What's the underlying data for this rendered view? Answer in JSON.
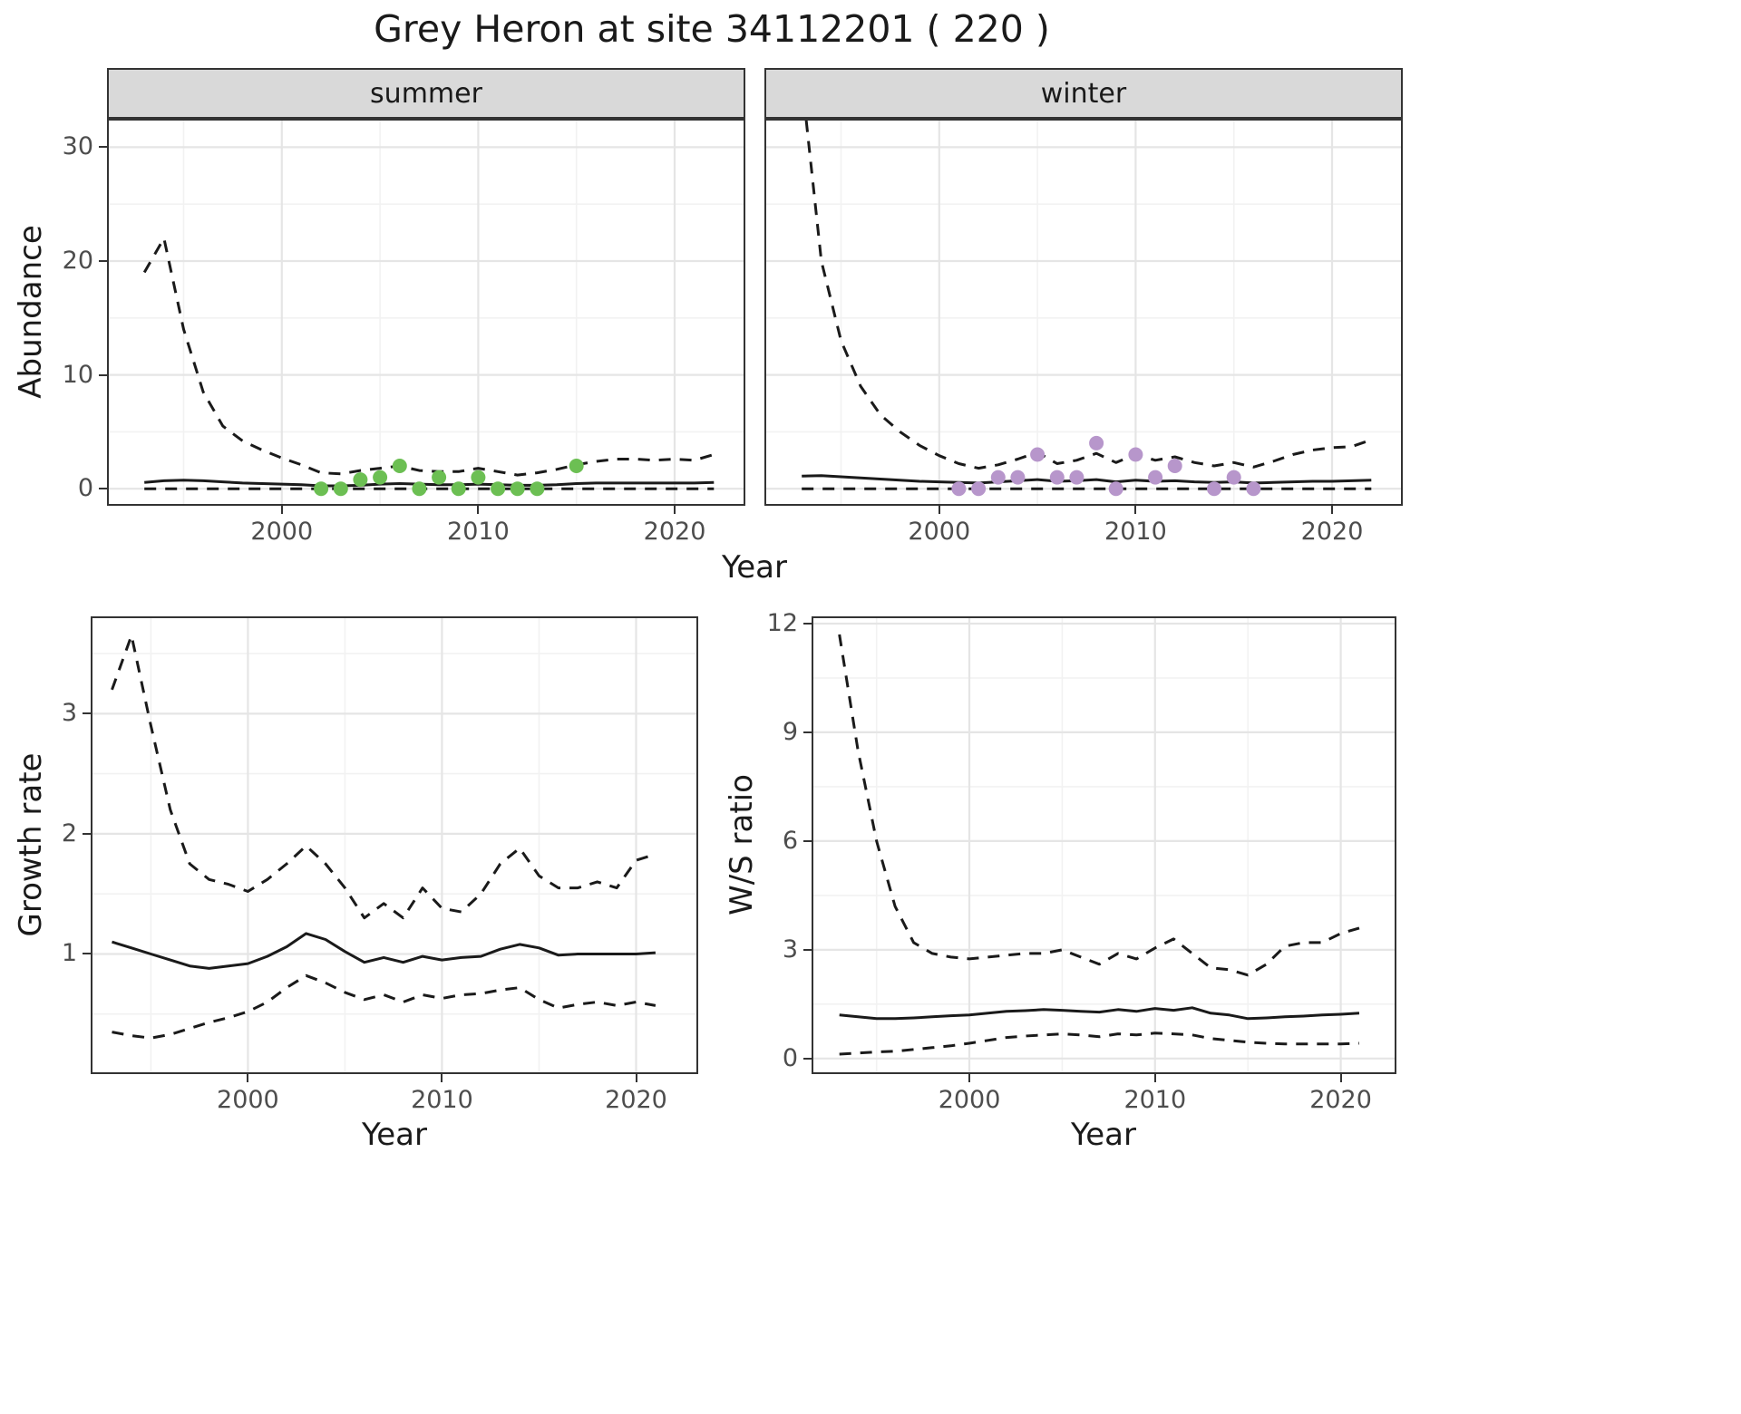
{
  "title": "Grey Heron at site 34112201 ( 220 )",
  "top_row": {
    "ylabel": "Abundance",
    "xlabel": "Year",
    "facets": [
      "summer",
      "winter"
    ]
  },
  "bottom_left": {
    "ylabel": "Growth rate",
    "xlabel": "Year"
  },
  "bottom_right": {
    "ylabel": "W/S ratio",
    "xlabel": "Year"
  },
  "colors": {
    "line": "#1a1a1a",
    "summer_points": "#6cbf53",
    "winter_points": "#b796cb"
  },
  "chart_data": [
    {
      "id": "abundance_summer",
      "type": "line",
      "strip": "summer",
      "xlabel": "Year",
      "ylabel": "Abundance",
      "xlim": [
        1991.1,
        2023.6
      ],
      "ylim": [
        -1.5,
        32.5
      ],
      "xticks": [
        2000,
        2010,
        2020
      ],
      "yticks": [
        0,
        10,
        20,
        30
      ],
      "x": [
        1993,
        1994,
        1995,
        1996,
        1997,
        1998,
        1999,
        2000,
        2001,
        2002,
        2003,
        2004,
        2005,
        2006,
        2007,
        2008,
        2009,
        2010,
        2011,
        2012,
        2013,
        2014,
        2015,
        2016,
        2017,
        2018,
        2019,
        2020,
        2021,
        2022
      ],
      "series": [
        {
          "name": "mean",
          "style": "solid",
          "y": [
            0.55,
            0.7,
            0.75,
            0.7,
            0.6,
            0.5,
            0.45,
            0.4,
            0.35,
            0.25,
            0.25,
            0.3,
            0.4,
            0.45,
            0.4,
            0.35,
            0.35,
            0.4,
            0.35,
            0.3,
            0.3,
            0.35,
            0.45,
            0.5,
            0.5,
            0.5,
            0.5,
            0.5,
            0.5,
            0.55
          ]
        },
        {
          "name": "upper_95ci",
          "style": "dashed",
          "y": [
            19,
            22,
            14,
            8.5,
            5.5,
            4.2,
            3.4,
            2.7,
            2.1,
            1.4,
            1.3,
            1.6,
            1.8,
            2.0,
            1.6,
            1.5,
            1.5,
            1.8,
            1.5,
            1.2,
            1.4,
            1.7,
            2.1,
            2.4,
            2.6,
            2.6,
            2.5,
            2.6,
            2.5,
            3.0
          ]
        },
        {
          "name": "lower_95ci",
          "style": "dashed",
          "y": [
            0,
            0,
            0,
            0,
            0,
            0,
            0,
            0,
            0,
            0,
            0,
            0,
            0,
            0,
            0,
            0,
            0,
            0,
            0,
            0,
            0,
            0,
            0,
            0,
            0,
            0,
            0,
            0,
            0,
            0
          ]
        }
      ],
      "points": {
        "name": "observed_counts",
        "color": "#6cbf53",
        "x": [
          2002,
          2003,
          2004,
          2005,
          2006,
          2007,
          2008,
          2009,
          2010,
          2011,
          2012,
          2013,
          2015
        ],
        "y": [
          0,
          0,
          0.8,
          1,
          2,
          0,
          1,
          0,
          1,
          0,
          0,
          0,
          2
        ]
      }
    },
    {
      "id": "abundance_winter",
      "type": "line",
      "strip": "winter",
      "xlabel": "Year",
      "ylabel": "Abundance",
      "xlim": [
        1991.1,
        2023.6
      ],
      "ylim": [
        -1.5,
        32.5
      ],
      "xticks": [
        2000,
        2010,
        2020
      ],
      "yticks": [
        0,
        10,
        20,
        30
      ],
      "x": [
        1993,
        1994,
        1995,
        1996,
        1997,
        1998,
        1999,
        2000,
        2001,
        2002,
        2003,
        2004,
        2005,
        2006,
        2007,
        2008,
        2009,
        2010,
        2011,
        2012,
        2013,
        2014,
        2015,
        2016,
        2017,
        2018,
        2019,
        2020,
        2021,
        2022
      ],
      "series": [
        {
          "name": "mean",
          "style": "solid",
          "y": [
            1.1,
            1.15,
            1.05,
            0.95,
            0.85,
            0.75,
            0.65,
            0.6,
            0.55,
            0.5,
            0.6,
            0.7,
            0.8,
            0.65,
            0.7,
            0.8,
            0.6,
            0.75,
            0.65,
            0.7,
            0.6,
            0.55,
            0.6,
            0.5,
            0.55,
            0.6,
            0.65,
            0.65,
            0.7,
            0.75
          ]
        },
        {
          "name": "upper_95ci",
          "style": "dashed",
          "y": [
            36,
            20,
            13,
            9,
            6.5,
            5,
            3.8,
            2.9,
            2.2,
            1.8,
            2.1,
            2.6,
            3.2,
            2.2,
            2.5,
            3.1,
            2.3,
            3.0,
            2.5,
            2.8,
            2.3,
            2.0,
            2.3,
            1.9,
            2.4,
            3.0,
            3.4,
            3.6,
            3.7,
            4.3
          ]
        },
        {
          "name": "lower_95ci",
          "style": "dashed",
          "y": [
            0,
            0,
            0,
            0,
            0,
            0,
            0,
            0,
            0,
            0,
            0,
            0,
            0,
            0,
            0,
            0,
            0,
            0,
            0,
            0,
            0,
            0,
            0,
            0,
            0,
            0,
            0,
            0,
            0,
            0
          ]
        }
      ],
      "points": {
        "name": "observed_counts",
        "color": "#b796cb",
        "x": [
          2001,
          2002,
          2003,
          2004,
          2005,
          2006,
          2007,
          2008,
          2009,
          2010,
          2011,
          2012,
          2014,
          2015,
          2016
        ],
        "y": [
          0,
          0,
          1,
          1,
          3,
          1,
          1,
          4,
          0,
          3,
          1,
          2,
          0,
          1,
          0
        ]
      }
    },
    {
      "id": "growth_rate",
      "type": "line",
      "xlabel": "Year",
      "ylabel": "Growth rate",
      "xlim": [
        1991.9,
        2023.2
      ],
      "ylim": [
        0.0,
        3.81
      ],
      "xticks": [
        2000,
        2010,
        2020
      ],
      "yticks": [
        1,
        2,
        3
      ],
      "x": [
        1993,
        1994,
        1995,
        1996,
        1997,
        1998,
        1999,
        2000,
        2001,
        2002,
        2003,
        2004,
        2005,
        2006,
        2007,
        2008,
        2009,
        2010,
        2011,
        2012,
        2013,
        2014,
        2015,
        2016,
        2017,
        2018,
        2019,
        2020,
        2021
      ],
      "series": [
        {
          "name": "mean",
          "style": "solid",
          "y": [
            1.1,
            1.05,
            1.0,
            0.95,
            0.9,
            0.88,
            0.9,
            0.92,
            0.98,
            1.06,
            1.17,
            1.12,
            1.02,
            0.93,
            0.97,
            0.93,
            0.98,
            0.95,
            0.97,
            0.98,
            1.04,
            1.08,
            1.05,
            0.99,
            1.0,
            1.0,
            1.0,
            1.0,
            1.01
          ]
        },
        {
          "name": "upper_95ci",
          "style": "dashed",
          "y": [
            3.2,
            3.65,
            2.9,
            2.2,
            1.75,
            1.62,
            1.58,
            1.52,
            1.62,
            1.75,
            1.9,
            1.75,
            1.55,
            1.3,
            1.42,
            1.3,
            1.55,
            1.38,
            1.35,
            1.5,
            1.75,
            1.88,
            1.65,
            1.55,
            1.55,
            1.6,
            1.55,
            1.78,
            1.83
          ]
        },
        {
          "name": "lower_95ci",
          "style": "dashed",
          "y": [
            0.35,
            0.32,
            0.3,
            0.33,
            0.38,
            0.43,
            0.47,
            0.52,
            0.6,
            0.72,
            0.82,
            0.76,
            0.68,
            0.62,
            0.66,
            0.6,
            0.66,
            0.63,
            0.66,
            0.67,
            0.7,
            0.72,
            0.62,
            0.55,
            0.58,
            0.6,
            0.57,
            0.6,
            0.57
          ]
        }
      ]
    },
    {
      "id": "ws_ratio",
      "type": "line",
      "xlabel": "Year",
      "ylabel": "W/S ratio",
      "xlim": [
        1991.5,
        2023.0
      ],
      "ylim": [
        -0.43,
        12.2
      ],
      "xticks": [
        2000,
        2010,
        2020
      ],
      "yticks": [
        0,
        3,
        6,
        9,
        12
      ],
      "x": [
        1993,
        1994,
        1995,
        1996,
        1997,
        1998,
        1999,
        2000,
        2001,
        2002,
        2003,
        2004,
        2005,
        2006,
        2007,
        2008,
        2009,
        2010,
        2011,
        2012,
        2013,
        2014,
        2015,
        2016,
        2017,
        2018,
        2019,
        2020,
        2021
      ],
      "series": [
        {
          "name": "mean",
          "style": "solid",
          "y": [
            1.2,
            1.15,
            1.1,
            1.1,
            1.12,
            1.15,
            1.18,
            1.2,
            1.25,
            1.3,
            1.32,
            1.35,
            1.33,
            1.3,
            1.28,
            1.35,
            1.3,
            1.38,
            1.33,
            1.4,
            1.25,
            1.2,
            1.1,
            1.12,
            1.15,
            1.17,
            1.2,
            1.22,
            1.25
          ]
        },
        {
          "name": "upper_95ci",
          "style": "dashed",
          "y": [
            11.7,
            8.5,
            6.0,
            4.2,
            3.2,
            2.9,
            2.8,
            2.75,
            2.8,
            2.85,
            2.9,
            2.9,
            3.0,
            2.8,
            2.6,
            2.9,
            2.75,
            3.05,
            3.3,
            2.9,
            2.5,
            2.45,
            2.3,
            2.6,
            3.1,
            3.2,
            3.2,
            3.45,
            3.6
          ]
        },
        {
          "name": "lower_95ci",
          "style": "dashed",
          "y": [
            0.12,
            0.15,
            0.18,
            0.2,
            0.25,
            0.3,
            0.35,
            0.42,
            0.5,
            0.58,
            0.62,
            0.65,
            0.68,
            0.65,
            0.6,
            0.68,
            0.65,
            0.7,
            0.68,
            0.65,
            0.55,
            0.5,
            0.45,
            0.42,
            0.4,
            0.4,
            0.4,
            0.4,
            0.42
          ]
        }
      ]
    }
  ]
}
